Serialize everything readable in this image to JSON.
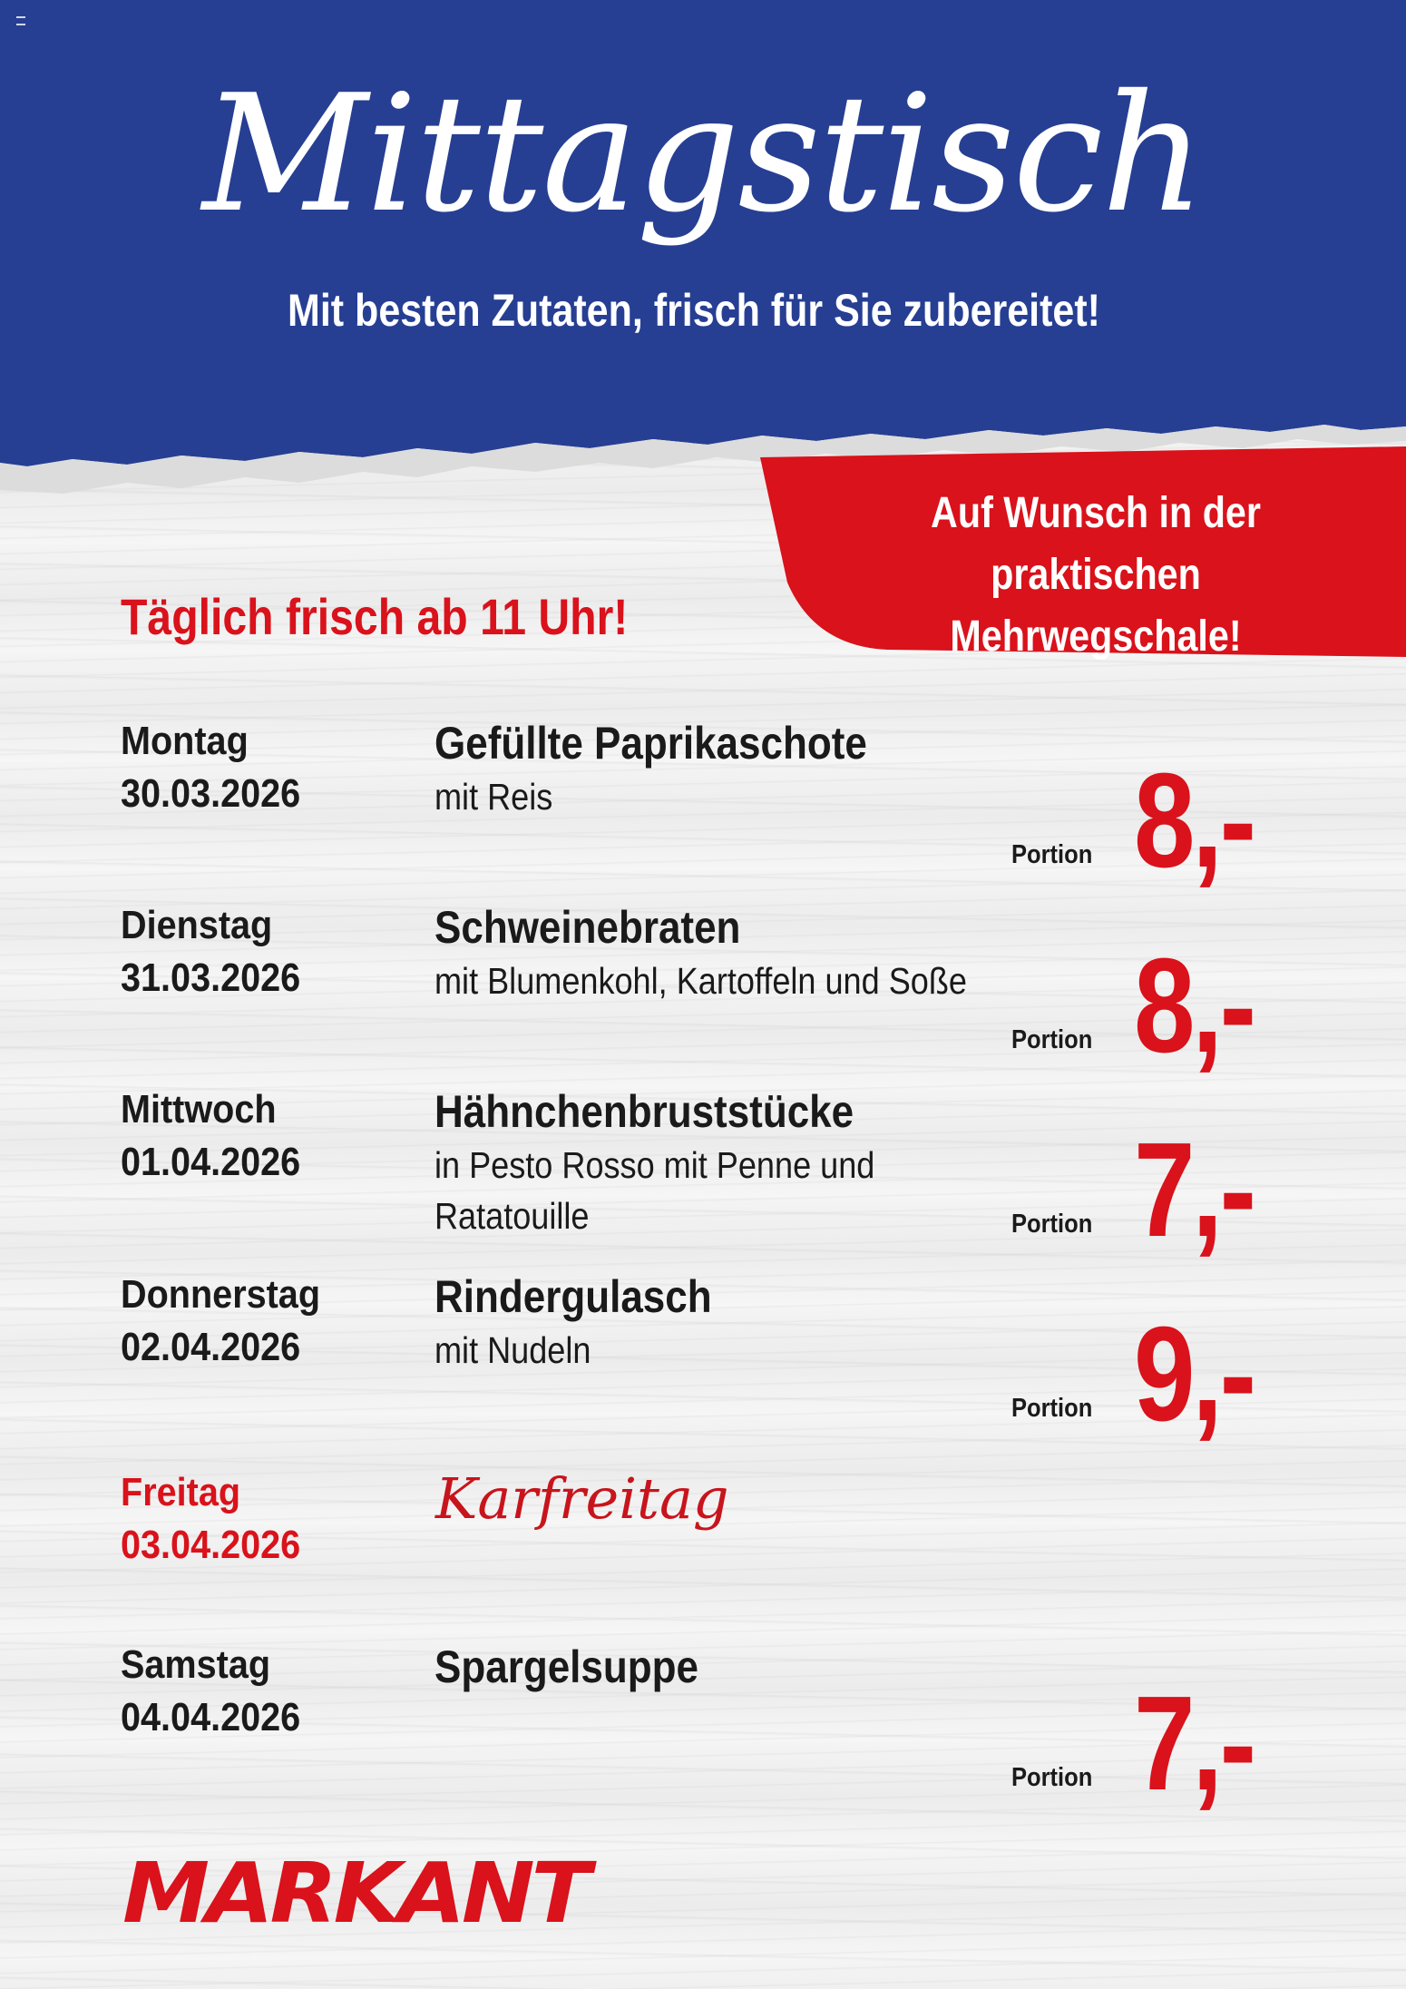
{
  "header": {
    "title": "Mittagstisch",
    "subtitle": "Mit besten Zutaten, frisch für Sie zubereitet!",
    "color": "#263f93"
  },
  "badge": {
    "line1": "Auf Wunsch in der praktischen",
    "line2": "Mehrwegschale!",
    "color": "#d9121b"
  },
  "tagline": "Täglich frisch ab 11 Uhr!",
  "menu": [
    {
      "day": "Montag",
      "date": "30.03.2026",
      "dish": "Gefüllte Paprikaschote",
      "desc1": "mit Reis",
      "desc2": "",
      "portion": "Portion",
      "price": "8,-"
    },
    {
      "day": "Dienstag",
      "date": "31.03.2026",
      "dish": "Schweinebraten",
      "desc1": "mit Blumenkohl, Kartoffeln und Soße",
      "desc2": "",
      "portion": "Portion",
      "price": "8,-"
    },
    {
      "day": "Mittwoch",
      "date": "01.04.2026",
      "dish": "Hähnchenbruststücke",
      "desc1": "in Pesto Rosso mit Penne und",
      "desc2": "Ratatouille",
      "portion": "Portion",
      "price": "7,-"
    },
    {
      "day": "Donnerstag",
      "date": "02.04.2026",
      "dish": "Rindergulasch",
      "desc1": "mit Nudeln",
      "desc2": "",
      "portion": "Portion",
      "price": "9,-"
    },
    {
      "day": "Freitag",
      "date": "03.04.2026",
      "dish": "Karfreitag",
      "holiday": true
    },
    {
      "day": "Samstag",
      "date": "04.04.2026",
      "dish": "Spargelsuppe",
      "desc1": "",
      "desc2": "",
      "portion": "Portion",
      "price": "7,-"
    }
  ],
  "logo": "MARKANT",
  "accent": "#d9121b"
}
